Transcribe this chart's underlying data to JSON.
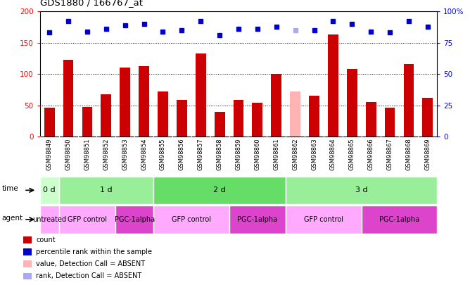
{
  "title": "GDS1880 / 166767_at",
  "samples": [
    "GSM98849",
    "GSM98850",
    "GSM98851",
    "GSM98852",
    "GSM98853",
    "GSM98854",
    "GSM98855",
    "GSM98856",
    "GSM98857",
    "GSM98858",
    "GSM98859",
    "GSM98860",
    "GSM98861",
    "GSM98862",
    "GSM98863",
    "GSM98864",
    "GSM98865",
    "GSM98866",
    "GSM98867",
    "GSM98868",
    "GSM98869"
  ],
  "bar_values": [
    47,
    123,
    48,
    68,
    110,
    113,
    72,
    59,
    133,
    40,
    59,
    54,
    100,
    72,
    65,
    163,
    108,
    55,
    46,
    116,
    62
  ],
  "bar_absent": [
    false,
    false,
    false,
    false,
    false,
    false,
    false,
    false,
    false,
    false,
    false,
    false,
    false,
    true,
    false,
    false,
    false,
    false,
    false,
    false,
    false
  ],
  "rank_values": [
    83,
    92,
    84,
    86,
    89,
    90,
    84,
    85,
    92,
    81,
    86,
    86,
    88,
    85,
    85,
    92,
    90,
    84,
    83,
    92,
    88
  ],
  "rank_absent": [
    false,
    false,
    false,
    false,
    false,
    false,
    false,
    false,
    false,
    false,
    false,
    false,
    false,
    true,
    false,
    false,
    false,
    false,
    false,
    false,
    false
  ],
  "bar_color_normal": "#cc0000",
  "bar_color_absent": "#ffb3b3",
  "rank_color_normal": "#0000cc",
  "rank_color_absent": "#aaaaee",
  "ylim_left": [
    0,
    200
  ],
  "ylim_right": [
    0,
    100
  ],
  "yticks_left": [
    0,
    50,
    100,
    150,
    200
  ],
  "yticks_right": [
    0,
    25,
    50,
    75,
    100
  ],
  "ytick_labels_right": [
    "0",
    "25",
    "50",
    "75",
    "100%"
  ],
  "time_groups": [
    {
      "label": "0 d",
      "start": 0,
      "end": 1
    },
    {
      "label": "1 d",
      "start": 1,
      "end": 6
    },
    {
      "label": "2 d",
      "start": 6,
      "end": 13
    },
    {
      "label": "3 d",
      "start": 13,
      "end": 21
    }
  ],
  "time_colors": [
    "#ccffcc",
    "#99ee99",
    "#66dd66",
    "#99ee99"
  ],
  "agent_groups": [
    {
      "label": "untreated",
      "start": 0,
      "end": 1
    },
    {
      "label": "GFP control",
      "start": 1,
      "end": 4
    },
    {
      "label": "PGC-1alpha",
      "start": 4,
      "end": 6
    },
    {
      "label": "GFP control",
      "start": 6,
      "end": 10
    },
    {
      "label": "PGC-1alpha",
      "start": 10,
      "end": 13
    },
    {
      "label": "GFP control",
      "start": 13,
      "end": 17
    },
    {
      "label": "PGC-1alpha",
      "start": 17,
      "end": 21
    }
  ],
  "agent_color_gfp": "#ffaaff",
  "agent_color_pgc": "#dd44cc",
  "time_bg_light": "#ccffcc",
  "time_bg_dark": "#66dd66",
  "legend_labels": [
    "count",
    "percentile rank within the sample",
    "value, Detection Call = ABSENT",
    "rank, Detection Call = ABSENT"
  ],
  "legend_colors": [
    "#cc0000",
    "#0000cc",
    "#ffb3b3",
    "#aaaaee"
  ]
}
